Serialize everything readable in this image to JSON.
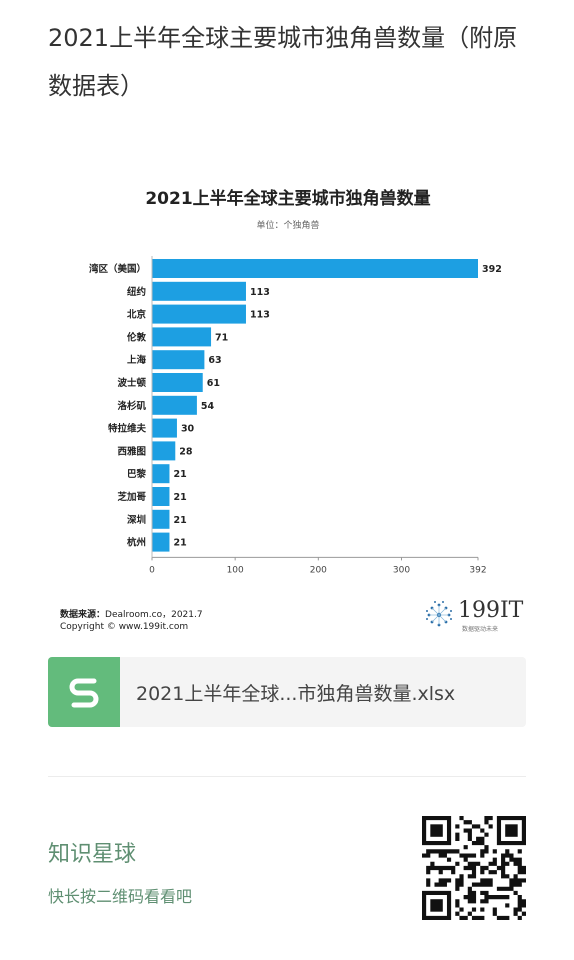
{
  "article": {
    "title": "2021上半年全球主要城市独角兽数量（附原数据表）"
  },
  "chart_data": {
    "type": "bar",
    "orientation": "horizontal",
    "title": "2021上半年全球主要城市独角兽数量",
    "subtitle": "单位：个独角兽",
    "categories": [
      "湾区（美国）",
      "纽约",
      "北京",
      "伦敦",
      "上海",
      "波士顿",
      "洛杉矶",
      "特拉维夫",
      "西雅图",
      "巴黎",
      "芝加哥",
      "深圳",
      "杭州"
    ],
    "values": [
      392,
      113,
      113,
      71,
      63,
      61,
      54,
      30,
      28,
      21,
      21,
      21,
      21
    ],
    "xticks": [
      0,
      100,
      200,
      300,
      392
    ],
    "xlim": [
      0,
      392
    ],
    "bar_color": "#1d9fe2",
    "grid": false,
    "source_label": "数据来源：",
    "source_text": "Dealroom.co，2021.7",
    "copyright_text": "Copyright © www.199it.com"
  },
  "logo": {
    "text": "199IT",
    "tagline": "数据驱动未来"
  },
  "attachment": {
    "file_name": "2021上半年全球...市独角兽数量.xlsx",
    "icon": "spreadsheet-s-icon",
    "icon_color": "#63bb7c"
  },
  "promo": {
    "title": "知识星球",
    "subtitle": "快长按二维码看看吧",
    "qr_icon": "qr-code-icon"
  }
}
